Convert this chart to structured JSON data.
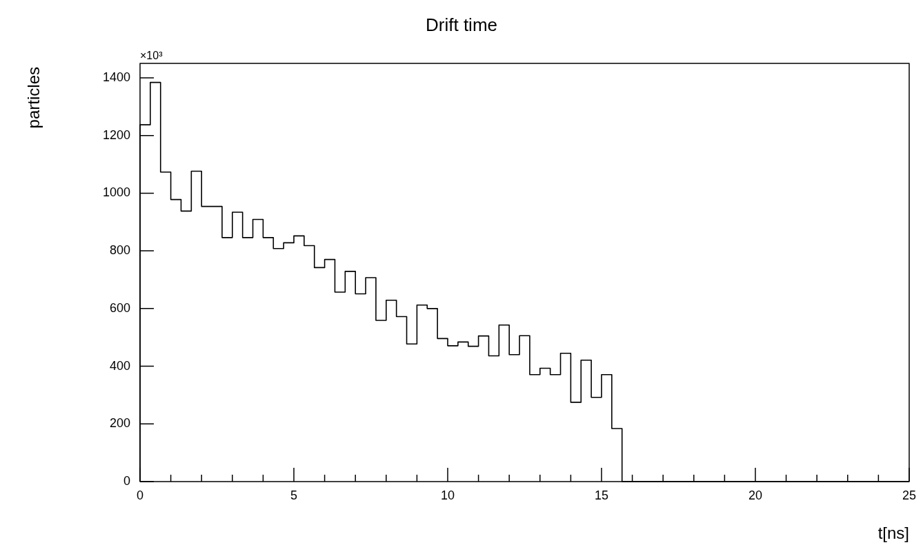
{
  "chart_data": {
    "type": "histogram",
    "title": "Drift time",
    "xlabel": "t[ns]",
    "ylabel": "particles",
    "annotations": [
      "×10³"
    ],
    "color": "#000000",
    "bins": [
      0,
      0.3333,
      0.6667,
      1,
      1.3333,
      1.6667,
      2,
      2.3333,
      2.6667,
      3,
      3.3333,
      3.6667,
      4,
      4.3333,
      4.6667,
      5,
      5.3333,
      5.6667,
      6,
      6.3333,
      6.6667,
      7,
      7.3333,
      7.6667,
      8,
      8.3333,
      8.6667,
      9,
      9.3333,
      9.6667,
      10,
      10.3333,
      10.6667,
      11,
      11.3333,
      11.6667,
      12,
      12.3333,
      12.6667,
      13,
      13.3333,
      13.6667,
      14,
      14.3333,
      14.6667,
      15,
      15.3333,
      15.6667,
      16,
      16.3333,
      16.6667,
      17,
      17.3333,
      17.6667,
      18,
      18.3333,
      18.6667,
      19,
      19.3333,
      19.6667,
      20,
      20.3333,
      20.6667,
      21,
      21.3333,
      21.6667,
      22,
      22.3333,
      22.6667,
      23,
      23.3333,
      23.6667,
      24,
      24.3333,
      24.6667,
      25
    ],
    "values": [
      1237,
      1384,
      1073,
      978,
      938,
      1076,
      954,
      954,
      846,
      934,
      846,
      909,
      846,
      808,
      828,
      852,
      818,
      742,
      770,
      657,
      729,
      651,
      707,
      559,
      629,
      572,
      477,
      612,
      600,
      496,
      471,
      484,
      469,
      505,
      436,
      543,
      440,
      506,
      371,
      393,
      371,
      445,
      275,
      421,
      292,
      371,
      184,
      0,
      0,
      0,
      0,
      0,
      0,
      0,
      0,
      0,
      0,
      0,
      0,
      0,
      0,
      0,
      0,
      0,
      0,
      0,
      0,
      0,
      0,
      0,
      0,
      0,
      0,
      0,
      0
    ],
    "xlim": [
      0,
      25
    ],
    "xticks": [
      0,
      {
        "value": 1,
        "label": null
      },
      {
        "value": 2,
        "label": null
      },
      {
        "value": 3,
        "label": null
      },
      {
        "value": 4,
        "label": null
      },
      5,
      {
        "value": 6,
        "label": null
      },
      {
        "value": 7,
        "label": null
      },
      {
        "value": 8,
        "label": null
      },
      {
        "value": 9,
        "label": null
      },
      10,
      {
        "value": 11,
        "label": null
      },
      {
        "value": 12,
        "label": null
      },
      {
        "value": 13,
        "label": null
      },
      {
        "value": 14,
        "label": null
      },
      15,
      {
        "value": 16,
        "label": null
      },
      {
        "value": 17,
        "label": null
      },
      {
        "value": 18,
        "label": null
      },
      {
        "value": 19,
        "label": null
      },
      20,
      {
        "value": 21,
        "label": null
      },
      {
        "value": 22,
        "label": null
      },
      {
        "value": 23,
        "label": null
      },
      {
        "value": 24,
        "label": null
      },
      25
    ],
    "ylim": [
      0,
      1450
    ],
    "yticks": [
      0,
      200,
      400,
      600,
      800,
      1000,
      1200,
      1400
    ]
  }
}
